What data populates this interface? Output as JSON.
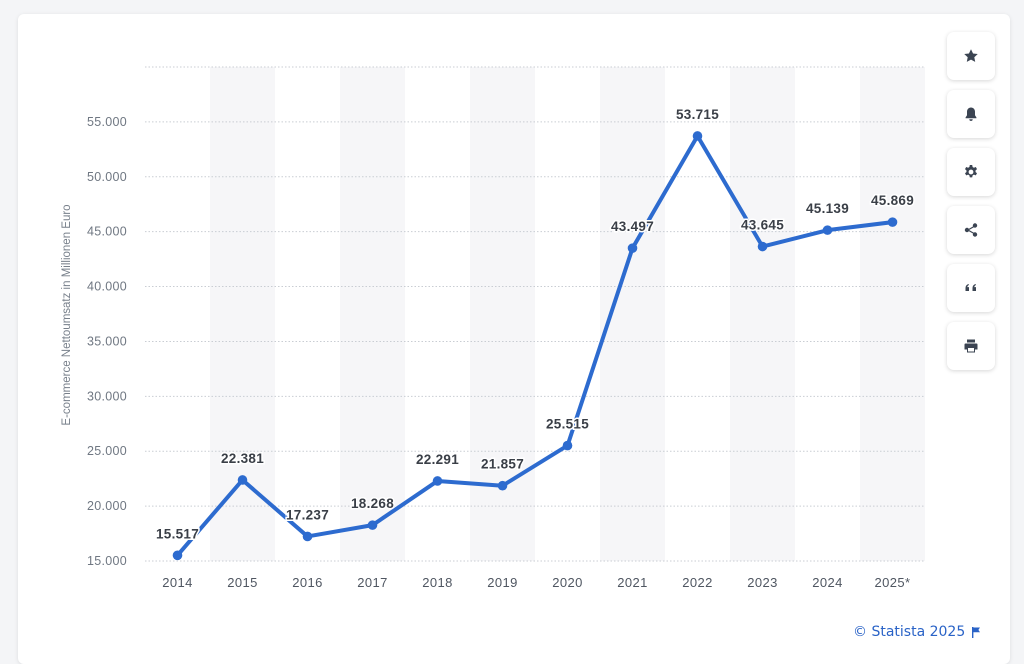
{
  "chart_data": {
    "type": "line",
    "categories": [
      "2014",
      "2015",
      "2016",
      "2017",
      "2018",
      "2019",
      "2020",
      "2021",
      "2022",
      "2023",
      "2024",
      "2025*"
    ],
    "series": [
      {
        "values": [
          15517,
          22381,
          17237,
          18268,
          22291,
          21857,
          25515,
          43497,
          53715,
          43645,
          45139,
          45869
        ]
      }
    ],
    "data_labels": [
      "15.517",
      "22.381",
      "17.237",
      "18.268",
      "22.291",
      "21.857",
      "25.515",
      "43.497",
      "53.715",
      "43.645",
      "45.139",
      "45.869"
    ],
    "ylabel": "E-commerce Nettoumsatz in Millionen Euro",
    "yticks": [
      15000,
      20000,
      25000,
      30000,
      35000,
      40000,
      45000,
      50000,
      55000
    ],
    "ytick_labels": [
      "15.000",
      "20.000",
      "25.000",
      "30.000",
      "35.000",
      "40.000",
      "45.000",
      "50.000",
      "55.000"
    ],
    "ylim": [
      15000,
      60000
    ],
    "grid": true,
    "line_color": "#2d6bcf",
    "band_color": "#f6f6f8"
  },
  "toolbar": {
    "buttons": [
      "star-icon",
      "bell-icon",
      "gear-icon",
      "share-icon",
      "quote-icon",
      "print-icon"
    ]
  },
  "footer": {
    "credit": "© Statista 2025"
  }
}
